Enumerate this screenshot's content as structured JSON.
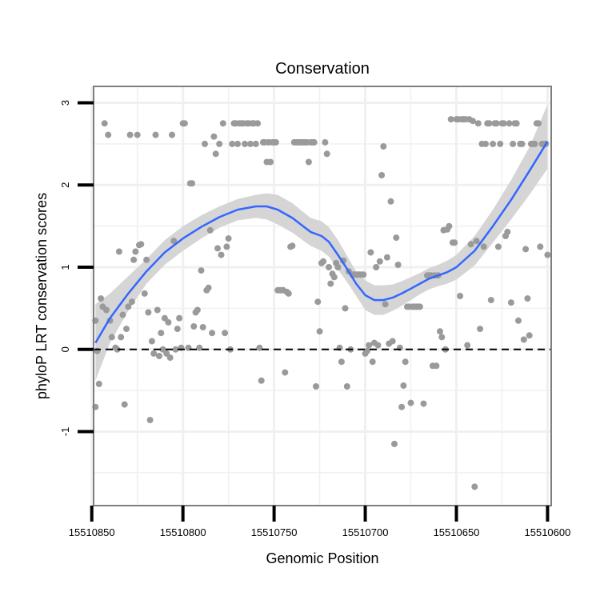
{
  "chart_data": {
    "type": "scatter",
    "title": "Conservation",
    "xlabel": "Genomic Position",
    "ylabel": "phyloP LRT conservation scores",
    "x_reversed": true,
    "xlim": [
      15510849,
      15510598
    ],
    "ylim": [
      -1.9,
      3.2
    ],
    "x_ticks": [
      15510850,
      15510800,
      15510750,
      15510700,
      15510650,
      15510600
    ],
    "x_tick_labels": [
      "15510850",
      "15510800",
      "15510750",
      "15510700",
      "15510650",
      "15510600"
    ],
    "y_ticks": [
      3,
      2,
      1,
      0,
      -1
    ],
    "y_tick_labels": [
      "3",
      "2",
      "1",
      "0",
      "-1"
    ],
    "reference_line": {
      "y": 0,
      "style": "dashed"
    },
    "colors": {
      "points": "#9a9a9a",
      "smooth": "#3366ff",
      "ribbon": "#d3d3d3",
      "grid": "#f0f0f0",
      "frame": "#7f7f7f"
    },
    "points": [
      {
        "x": 15510848,
        "y": 0.35
      },
      {
        "x": 15510848,
        "y": -0.7
      },
      {
        "x": 15510847,
        "y": -0.02
      },
      {
        "x": 15510846,
        "y": -0.42
      },
      {
        "x": 15510845,
        "y": 0.62
      },
      {
        "x": 15510844,
        "y": 0.52
      },
      {
        "x": 15510843,
        "y": 2.75
      },
      {
        "x": 15510842,
        "y": 0.48
      },
      {
        "x": 15510841,
        "y": 2.61
      },
      {
        "x": 15510840,
        "y": 0.35
      },
      {
        "x": 15510839,
        "y": 0.15
      },
      {
        "x": 15510837,
        "y": 0.02
      },
      {
        "x": 15510836,
        "y": 0.0
      },
      {
        "x": 15510835,
        "y": 1.19
      },
      {
        "x": 15510834,
        "y": 0.15
      },
      {
        "x": 15510833,
        "y": 0.42
      },
      {
        "x": 15510832,
        "y": -0.67
      },
      {
        "x": 15510831,
        "y": 0.25
      },
      {
        "x": 15510830,
        "y": 0.52
      },
      {
        "x": 15510829,
        "y": 2.61
      },
      {
        "x": 15510828,
        "y": 0.58
      },
      {
        "x": 15510827,
        "y": 1.09
      },
      {
        "x": 15510826,
        "y": 1.19
      },
      {
        "x": 15510825,
        "y": 2.61
      },
      {
        "x": 15510824,
        "y": 1.27
      },
      {
        "x": 15510823,
        "y": 1.28
      },
      {
        "x": 15510821,
        "y": 0.68
      },
      {
        "x": 15510820,
        "y": 1.09
      },
      {
        "x": 15510819,
        "y": 0.45
      },
      {
        "x": 15510818,
        "y": -0.86
      },
      {
        "x": 15510817,
        "y": 0.1
      },
      {
        "x": 15510816,
        "y": -0.05
      },
      {
        "x": 15510815,
        "y": 2.61
      },
      {
        "x": 15510814,
        "y": 0.48
      },
      {
        "x": 15510813,
        "y": -0.08
      },
      {
        "x": 15510812,
        "y": 0.2
      },
      {
        "x": 15510811,
        "y": 0.0
      },
      {
        "x": 15510810,
        "y": 0.38
      },
      {
        "x": 15510809,
        "y": -0.05
      },
      {
        "x": 15510808,
        "y": 0.33
      },
      {
        "x": 15510807,
        "y": -0.1
      },
      {
        "x": 15510806,
        "y": 2.61
      },
      {
        "x": 15510805,
        "y": 1.32
      },
      {
        "x": 15510804,
        "y": 0.0
      },
      {
        "x": 15510803,
        "y": 0.25
      },
      {
        "x": 15510802,
        "y": 0.38
      },
      {
        "x": 15510801,
        "y": 0.02
      },
      {
        "x": 15510800,
        "y": 2.75
      },
      {
        "x": 15510799,
        "y": 2.75
      },
      {
        "x": 15510797,
        "y": 0.02
      },
      {
        "x": 15510796,
        "y": 2.02
      },
      {
        "x": 15510795,
        "y": 2.02
      },
      {
        "x": 15510794,
        "y": 0.28
      },
      {
        "x": 15510793,
        "y": 0.45
      },
      {
        "x": 15510792,
        "y": 0.48
      },
      {
        "x": 15510791,
        "y": 0.02
      },
      {
        "x": 15510790,
        "y": 0.96
      },
      {
        "x": 15510789,
        "y": 0.27
      },
      {
        "x": 15510788,
        "y": 2.5
      },
      {
        "x": 15510787,
        "y": 0.72
      },
      {
        "x": 15510786,
        "y": 0.75
      },
      {
        "x": 15510785,
        "y": 1.45
      },
      {
        "x": 15510784,
        "y": 0.2
      },
      {
        "x": 15510783,
        "y": 2.59
      },
      {
        "x": 15510782,
        "y": 2.38
      },
      {
        "x": 15510781,
        "y": 1.23
      },
      {
        "x": 15510780,
        "y": 2.5
      },
      {
        "x": 15510779,
        "y": 1.15
      },
      {
        "x": 15510778,
        "y": 2.75
      },
      {
        "x": 15510777,
        "y": 0.2
      },
      {
        "x": 15510776,
        "y": 1.25
      },
      {
        "x": 15510775,
        "y": 1.35
      },
      {
        "x": 15510774,
        "y": 0.0
      },
      {
        "x": 15510773,
        "y": 2.5
      },
      {
        "x": 15510772,
        "y": 2.75
      },
      {
        "x": 15510771,
        "y": 2.75
      },
      {
        "x": 15510770,
        "y": 2.5
      },
      {
        "x": 15510769,
        "y": 2.75
      },
      {
        "x": 15510768,
        "y": 2.75
      },
      {
        "x": 15510767,
        "y": 2.75
      },
      {
        "x": 15510766,
        "y": 2.5
      },
      {
        "x": 15510765,
        "y": 2.75
      },
      {
        "x": 15510764,
        "y": 2.75
      },
      {
        "x": 15510763,
        "y": 2.5
      },
      {
        "x": 15510762,
        "y": 2.75
      },
      {
        "x": 15510761,
        "y": 2.75
      },
      {
        "x": 15510760,
        "y": 2.5
      },
      {
        "x": 15510759,
        "y": 2.75
      },
      {
        "x": 15510758,
        "y": 0.02
      },
      {
        "x": 15510757,
        "y": -0.38
      },
      {
        "x": 15510756,
        "y": 2.52
      },
      {
        "x": 15510755,
        "y": 2.52
      },
      {
        "x": 15510754,
        "y": 2.28
      },
      {
        "x": 15510753,
        "y": 2.52
      },
      {
        "x": 15510752,
        "y": 2.28
      },
      {
        "x": 15510751,
        "y": 2.52
      },
      {
        "x": 15510750,
        "y": 2.52
      },
      {
        "x": 15510749,
        "y": 2.52
      },
      {
        "x": 15510748,
        "y": 0.72
      },
      {
        "x": 15510747,
        "y": 0.72
      },
      {
        "x": 15510746,
        "y": 0.72
      },
      {
        "x": 15510745,
        "y": 0.72
      },
      {
        "x": 15510744,
        "y": -0.28
      },
      {
        "x": 15510743,
        "y": 0.7
      },
      {
        "x": 15510742,
        "y": 0.68
      },
      {
        "x": 15510741,
        "y": 1.25
      },
      {
        "x": 15510740,
        "y": 1.26
      },
      {
        "x": 15510739,
        "y": 2.52
      },
      {
        "x": 15510738,
        "y": 2.52
      },
      {
        "x": 15510737,
        "y": 2.52
      },
      {
        "x": 15510736,
        "y": 2.52
      },
      {
        "x": 15510735,
        "y": 2.52
      },
      {
        "x": 15510734,
        "y": 2.52
      },
      {
        "x": 15510733,
        "y": 2.52
      },
      {
        "x": 15510732,
        "y": 2.52
      },
      {
        "x": 15510731,
        "y": 2.28
      },
      {
        "x": 15510730,
        "y": 2.52
      },
      {
        "x": 15510729,
        "y": 2.52
      },
      {
        "x": 15510728,
        "y": 2.52
      },
      {
        "x": 15510727,
        "y": -0.45
      },
      {
        "x": 15510726,
        "y": 0.58
      },
      {
        "x": 15510725,
        "y": 0.22
      },
      {
        "x": 15510724,
        "y": 1.05
      },
      {
        "x": 15510723,
        "y": 1.07
      },
      {
        "x": 15510722,
        "y": 2.52
      },
      {
        "x": 15510721,
        "y": 2.38
      },
      {
        "x": 15510720,
        "y": 1.0
      },
      {
        "x": 15510719,
        "y": 0.8
      },
      {
        "x": 15510718,
        "y": 0.92
      },
      {
        "x": 15510717,
        "y": 0.88
      },
      {
        "x": 15510716,
        "y": 1.05
      },
      {
        "x": 15510715,
        "y": 1.0
      },
      {
        "x": 15510714,
        "y": 0.02
      },
      {
        "x": 15510713,
        "y": -0.15
      },
      {
        "x": 15510712,
        "y": 1.08
      },
      {
        "x": 15510711,
        "y": 0.5
      },
      {
        "x": 15510710,
        "y": -0.45
      },
      {
        "x": 15510709,
        "y": 0.95
      },
      {
        "x": 15510708,
        "y": 0.0
      },
      {
        "x": 15510707,
        "y": 0.91
      },
      {
        "x": 15510706,
        "y": 0.91
      },
      {
        "x": 15510705,
        "y": 0.91
      },
      {
        "x": 15510704,
        "y": 0.91
      },
      {
        "x": 15510703,
        "y": 0.91
      },
      {
        "x": 15510702,
        "y": 0.91
      },
      {
        "x": 15510701,
        "y": 0.91
      },
      {
        "x": 15510700,
        "y": -0.05
      },
      {
        "x": 15510699,
        "y": -0.02
      },
      {
        "x": 15510698,
        "y": 0.05
      },
      {
        "x": 15510697,
        "y": 1.18
      },
      {
        "x": 15510696,
        "y": -0.15
      },
      {
        "x": 15510695,
        "y": 0.08
      },
      {
        "x": 15510694,
        "y": 1.0
      },
      {
        "x": 15510693,
        "y": 0.05
      },
      {
        "x": 15510692,
        "y": 1.07
      },
      {
        "x": 15510691,
        "y": 2.12
      },
      {
        "x": 15510690,
        "y": 2.47
      },
      {
        "x": 15510689,
        "y": 0.55
      },
      {
        "x": 15510688,
        "y": 1.12
      },
      {
        "x": 15510687,
        "y": 0.07
      },
      {
        "x": 15510686,
        "y": 1.8
      },
      {
        "x": 15510685,
        "y": 0.1
      },
      {
        "x": 15510684,
        "y": -1.15
      },
      {
        "x": 15510683,
        "y": 1.36
      },
      {
        "x": 15510682,
        "y": 1.03
      },
      {
        "x": 15510681,
        "y": 0.02
      },
      {
        "x": 15510680,
        "y": -0.7
      },
      {
        "x": 15510679,
        "y": -0.44
      },
      {
        "x": 15510678,
        "y": -0.15
      },
      {
        "x": 15510677,
        "y": 0.52
      },
      {
        "x": 15510676,
        "y": 0.52
      },
      {
        "x": 15510675,
        "y": -0.65
      },
      {
        "x": 15510674,
        "y": 0.52
      },
      {
        "x": 15510673,
        "y": 0.52
      },
      {
        "x": 15510672,
        "y": 0.52
      },
      {
        "x": 15510671,
        "y": 0.52
      },
      {
        "x": 15510670,
        "y": 0.52
      },
      {
        "x": 15510668,
        "y": -0.66
      },
      {
        "x": 15510666,
        "y": 0.9
      },
      {
        "x": 15510665,
        "y": 0.9
      },
      {
        "x": 15510664,
        "y": 0.9
      },
      {
        "x": 15510663,
        "y": -0.2
      },
      {
        "x": 15510662,
        "y": 0.9
      },
      {
        "x": 15510661,
        "y": -0.2
      },
      {
        "x": 15510660,
        "y": 0.9
      },
      {
        "x": 15510659,
        "y": 0.22
      },
      {
        "x": 15510658,
        "y": 0.15
      },
      {
        "x": 15510657,
        "y": 1.45
      },
      {
        "x": 15510656,
        "y": 0.0
      },
      {
        "x": 15510655,
        "y": 1.46
      },
      {
        "x": 15510654,
        "y": 1.5
      },
      {
        "x": 15510653,
        "y": 2.8
      },
      {
        "x": 15510652,
        "y": 1.3
      },
      {
        "x": 15510651,
        "y": 1.3
      },
      {
        "x": 15510650,
        "y": 2.8
      },
      {
        "x": 15510649,
        "y": 2.8
      },
      {
        "x": 15510648,
        "y": 0.65
      },
      {
        "x": 15510647,
        "y": 2.8
      },
      {
        "x": 15510646,
        "y": 2.8
      },
      {
        "x": 15510645,
        "y": 2.8
      },
      {
        "x": 15510644,
        "y": 0.05
      },
      {
        "x": 15510643,
        "y": 2.8
      },
      {
        "x": 15510642,
        "y": 1.28
      },
      {
        "x": 15510641,
        "y": 2.78
      },
      {
        "x": 15510640,
        "y": -1.67
      },
      {
        "x": 15510639,
        "y": 1.32
      },
      {
        "x": 15510638,
        "y": 2.75
      },
      {
        "x": 15510637,
        "y": 0.25
      },
      {
        "x": 15510636,
        "y": 2.5
      },
      {
        "x": 15510635,
        "y": 1.25
      },
      {
        "x": 15510634,
        "y": 2.5
      },
      {
        "x": 15510633,
        "y": 2.75
      },
      {
        "x": 15510632,
        "y": 2.75
      },
      {
        "x": 15510631,
        "y": 0.6
      },
      {
        "x": 15510630,
        "y": 2.5
      },
      {
        "x": 15510629,
        "y": 2.75
      },
      {
        "x": 15510628,
        "y": 2.75
      },
      {
        "x": 15510627,
        "y": 1.25
      },
      {
        "x": 15510626,
        "y": 2.5
      },
      {
        "x": 15510625,
        "y": 2.75
      },
      {
        "x": 15510624,
        "y": 2.75
      },
      {
        "x": 15510623,
        "y": 1.38
      },
      {
        "x": 15510622,
        "y": 1.43
      },
      {
        "x": 15510621,
        "y": 2.75
      },
      {
        "x": 15510620,
        "y": 0.57
      },
      {
        "x": 15510619,
        "y": 2.5
      },
      {
        "x": 15510618,
        "y": 2.75
      },
      {
        "x": 15510617,
        "y": 2.75
      },
      {
        "x": 15510616,
        "y": 0.35
      },
      {
        "x": 15510615,
        "y": 2.5
      },
      {
        "x": 15510614,
        "y": 2.5
      },
      {
        "x": 15510613,
        "y": 0.12
      },
      {
        "x": 15510612,
        "y": 1.22
      },
      {
        "x": 15510611,
        "y": 0.62
      },
      {
        "x": 15510610,
        "y": 0.17
      },
      {
        "x": 15510609,
        "y": 2.5
      },
      {
        "x": 15510608,
        "y": 2.5
      },
      {
        "x": 15510607,
        "y": 2.5
      },
      {
        "x": 15510606,
        "y": 2.75
      },
      {
        "x": 15510605,
        "y": 2.75
      },
      {
        "x": 15510604,
        "y": 1.25
      },
      {
        "x": 15510603,
        "y": 2.5
      },
      {
        "x": 15510602,
        "y": 2.5
      },
      {
        "x": 15510601,
        "y": 2.5
      },
      {
        "x": 15510600,
        "y": 1.15
      }
    ],
    "smooth_fit": {
      "method": "loess",
      "x": [
        15510848,
        15510840,
        15510830,
        15510820,
        15510810,
        15510800,
        15510790,
        15510780,
        15510770,
        15510760,
        15510754,
        15510748,
        15510740,
        15510730,
        15510724,
        15510720,
        15510715,
        15510710,
        15510705,
        15510700,
        15510695,
        15510690,
        15510685,
        15510680,
        15510675,
        15510670,
        15510665,
        15510660,
        15510655,
        15510650,
        15510640,
        15510630,
        15510620,
        15510610,
        15510600
      ],
      "y": [
        0.08,
        0.38,
        0.68,
        0.95,
        1.18,
        1.35,
        1.49,
        1.61,
        1.7,
        1.74,
        1.74,
        1.7,
        1.6,
        1.43,
        1.38,
        1.31,
        1.15,
        0.98,
        0.8,
        0.66,
        0.6,
        0.6,
        0.63,
        0.68,
        0.74,
        0.8,
        0.86,
        0.9,
        0.94,
        1.0,
        1.2,
        1.5,
        1.82,
        2.17,
        2.53
      ],
      "ci_lower": [
        -0.38,
        0.08,
        0.47,
        0.8,
        1.03,
        1.2,
        1.35,
        1.48,
        1.57,
        1.6,
        1.58,
        1.52,
        1.42,
        1.26,
        1.2,
        1.13,
        0.97,
        0.82,
        0.65,
        0.48,
        0.42,
        0.42,
        0.47,
        0.53,
        0.6,
        0.67,
        0.73,
        0.77,
        0.8,
        0.85,
        1.02,
        1.3,
        1.58,
        1.88,
        2.2
      ],
      "ci_upper": [
        0.55,
        0.68,
        0.89,
        1.1,
        1.33,
        1.5,
        1.63,
        1.74,
        1.83,
        1.88,
        1.9,
        1.88,
        1.78,
        1.6,
        1.56,
        1.49,
        1.33,
        1.14,
        0.95,
        0.84,
        0.78,
        0.78,
        0.79,
        0.83,
        0.88,
        0.93,
        0.99,
        1.03,
        1.08,
        1.15,
        1.38,
        1.7,
        2.06,
        2.46,
        2.98
      ]
    }
  }
}
